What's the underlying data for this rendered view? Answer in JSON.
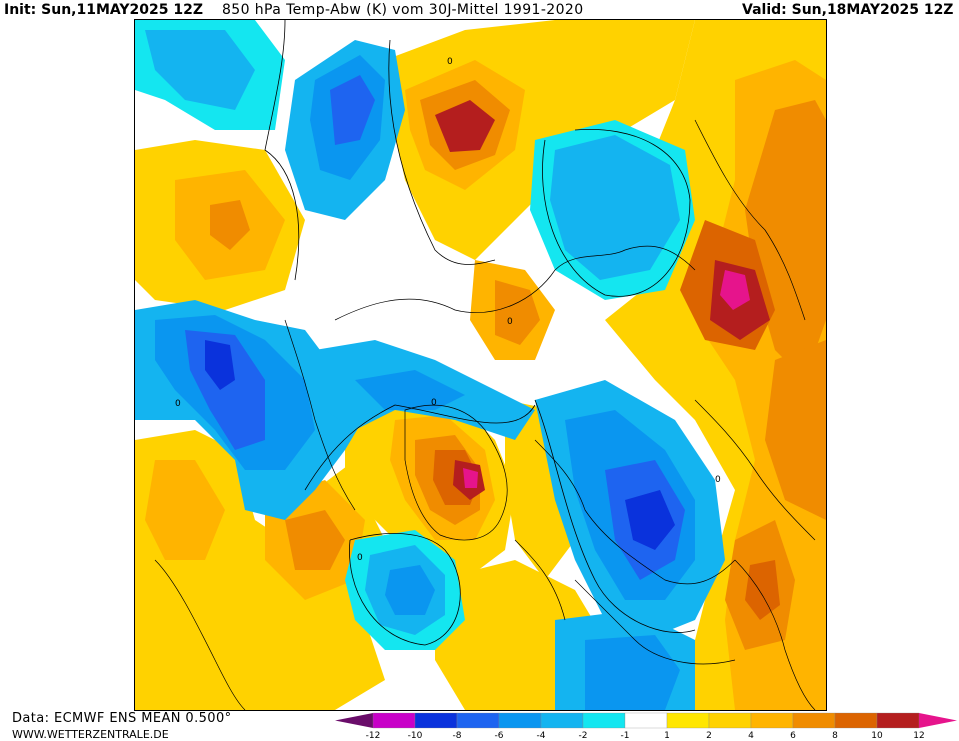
{
  "header": {
    "init": "Init: Sun,11MAY2025 12Z",
    "title": "850 hPa Temp-Abw (K) vom 30J-Mittel 1991-2020",
    "valid": "Valid: Sun,18MAY2025 12Z"
  },
  "footer": {
    "data_source": "Data: ECMWF ENS MEAN 0.500°",
    "website": "WWW.WETTERZENTRALE.DE"
  },
  "colors": {
    "below_-12": "#6a0d6a",
    "-12_-10": "#c800c8",
    "-10_-8": "#0a32dc",
    "-8_-6": "#1e64f0",
    "-6_-4": "#0a96f0",
    "-4_-2": "#14b4f0",
    "-2_-1": "#14e6f0",
    "-1_1": "#ffffff",
    "1_2": "#ffe600",
    "2_4": "#ffd200",
    "4_6": "#ffb400",
    "6_8": "#f08c00",
    "8_10": "#dc6400",
    "10_12": "#b41e1e",
    "above_12": "#e6148c"
  },
  "legend": {
    "ticks": [
      "-12",
      "-10",
      "-8",
      "-6",
      "-4",
      "-2",
      "-1",
      "1",
      "2",
      "4",
      "6",
      "8",
      "10",
      "12"
    ]
  },
  "map_features": {
    "contour_label": "0"
  }
}
